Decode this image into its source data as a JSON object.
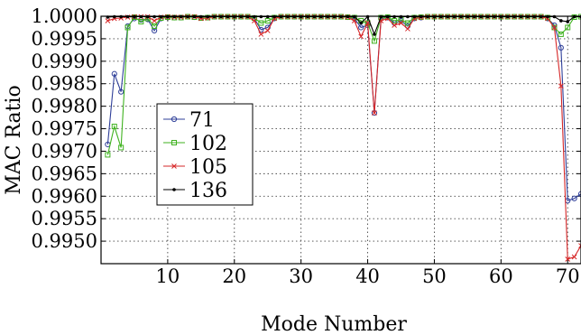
{
  "chart_data": {
    "type": "line",
    "title": "",
    "xlabel": "Mode Number",
    "ylabel": "MAC Ratio",
    "xlim": [
      0,
      72
    ],
    "ylim": [
      0.9945,
      1.0
    ],
    "xticks": [
      10,
      20,
      30,
      40,
      50,
      60,
      70
    ],
    "yticks": [
      "0.9950",
      "0.9955",
      "0.9960",
      "0.9965",
      "0.9970",
      "0.9975",
      "0.9980",
      "0.9985",
      "0.9990",
      "0.9995",
      "1.0000"
    ],
    "grid": true,
    "legend_position": "left",
    "series": [
      {
        "name": "71",
        "color": "#2f3f99",
        "marker": "circle",
        "points": [
          [
            1,
            0.99715
          ],
          [
            2,
            0.99872
          ],
          [
            3,
            0.99832
          ],
          [
            4,
            0.99978
          ],
          [
            5,
            0.99995
          ],
          [
            6,
            0.99992
          ],
          [
            7,
            0.99993
          ],
          [
            8,
            0.99968
          ],
          [
            9,
            0.99995
          ],
          [
            10,
            0.99998
          ],
          [
            11,
            0.99997
          ],
          [
            12,
            0.99997
          ],
          [
            13,
            0.99999
          ],
          [
            14,
            0.99998
          ],
          [
            15,
            0.99996
          ],
          [
            16,
            0.99997
          ],
          [
            17,
            0.99999
          ],
          [
            18,
            0.99999
          ],
          [
            19,
            0.99999
          ],
          [
            20,
            0.99999
          ],
          [
            21,
            0.99999
          ],
          [
            22,
            0.99999
          ],
          [
            23,
            0.99995
          ],
          [
            24,
            0.9997
          ],
          [
            25,
            0.99975
          ],
          [
            26,
            0.99995
          ],
          [
            27,
            0.99999
          ],
          [
            28,
            0.99999
          ],
          [
            29,
            0.99999
          ],
          [
            30,
            0.99999
          ],
          [
            31,
            0.99999
          ],
          [
            32,
            0.99999
          ],
          [
            33,
            0.99999
          ],
          [
            34,
            0.99999
          ],
          [
            35,
            0.99999
          ],
          [
            36,
            0.99999
          ],
          [
            37,
            0.99998
          ],
          [
            38,
            0.99995
          ],
          [
            39,
            0.99975
          ],
          [
            40,
            0.9998
          ],
          [
            41,
            0.99785
          ],
          [
            42,
            0.99995
          ],
          [
            43,
            0.99997
          ],
          [
            44,
            0.99985
          ],
          [
            45,
            0.9999
          ],
          [
            46,
            0.99978
          ],
          [
            47,
            0.99995
          ],
          [
            48,
            0.99997
          ],
          [
            49,
            0.99999
          ],
          [
            50,
            0.99999
          ],
          [
            51,
            0.99999
          ],
          [
            52,
            0.99999
          ],
          [
            53,
            0.99999
          ],
          [
            54,
            0.99999
          ],
          [
            55,
            0.99999
          ],
          [
            56,
            0.99999
          ],
          [
            57,
            0.99999
          ],
          [
            58,
            0.99999
          ],
          [
            59,
            0.99999
          ],
          [
            60,
            0.99999
          ],
          [
            61,
            0.99999
          ],
          [
            62,
            0.99999
          ],
          [
            63,
            0.99999
          ],
          [
            64,
            0.99999
          ],
          [
            65,
            0.99999
          ],
          [
            66,
            0.99999
          ],
          [
            67,
            0.99995
          ],
          [
            68,
            0.9998
          ],
          [
            69,
            0.9993
          ],
          [
            70,
            0.9959
          ],
          [
            71,
            0.99595
          ],
          [
            72,
            0.99605
          ]
        ]
      },
      {
        "name": "102",
        "color": "#3fb21f",
        "marker": "square",
        "points": [
          [
            1,
            0.99692
          ],
          [
            2,
            0.99755
          ],
          [
            3,
            0.99708
          ],
          [
            4,
            0.99975
          ],
          [
            5,
            0.99998
          ],
          [
            6,
            0.99988
          ],
          [
            7,
            0.99995
          ],
          [
            8,
            0.99978
          ],
          [
            9,
            0.99996
          ],
          [
            10,
            0.99998
          ],
          [
            11,
            0.99997
          ],
          [
            12,
            0.99997
          ],
          [
            13,
            0.99999
          ],
          [
            14,
            0.99998
          ],
          [
            15,
            0.99996
          ],
          [
            16,
            0.99997
          ],
          [
            17,
            0.99999
          ],
          [
            18,
            0.99999
          ],
          [
            19,
            0.99999
          ],
          [
            20,
            0.99999
          ],
          [
            21,
            0.99999
          ],
          [
            22,
            0.99999
          ],
          [
            23,
            0.99996
          ],
          [
            24,
            0.99985
          ],
          [
            25,
            0.9999
          ],
          [
            26,
            0.99997
          ],
          [
            27,
            0.99999
          ],
          [
            28,
            0.99999
          ],
          [
            29,
            0.99999
          ],
          [
            30,
            0.99999
          ],
          [
            31,
            0.99999
          ],
          [
            32,
            0.99999
          ],
          [
            33,
            0.99999
          ],
          [
            34,
            0.99999
          ],
          [
            35,
            0.99999
          ],
          [
            36,
            0.99999
          ],
          [
            37,
            0.99998
          ],
          [
            38,
            0.99997
          ],
          [
            39,
            0.9999
          ],
          [
            40,
            0.99985
          ],
          [
            41,
            0.99945
          ],
          [
            42,
            0.99997
          ],
          [
            43,
            0.99998
          ],
          [
            44,
            0.9999
          ],
          [
            45,
            0.99992
          ],
          [
            46,
            0.99985
          ],
          [
            47,
            0.99997
          ],
          [
            48,
            0.99998
          ],
          [
            49,
            0.99999
          ],
          [
            50,
            0.99999
          ],
          [
            51,
            0.99999
          ],
          [
            52,
            0.99999
          ],
          [
            53,
            0.99999
          ],
          [
            54,
            0.99999
          ],
          [
            55,
            0.99999
          ],
          [
            56,
            0.99999
          ],
          [
            57,
            0.99999
          ],
          [
            58,
            0.99999
          ],
          [
            59,
            0.99999
          ],
          [
            60,
            0.99999
          ],
          [
            61,
            0.99999
          ],
          [
            62,
            0.99999
          ],
          [
            63,
            0.99999
          ],
          [
            64,
            0.99999
          ],
          [
            65,
            0.99999
          ],
          [
            66,
            0.99999
          ],
          [
            67,
            0.99997
          ],
          [
            68,
            0.99975
          ],
          [
            69,
            0.9996
          ],
          [
            70,
            0.99975
          ],
          [
            71,
            0.99998
          ],
          [
            72,
            0.99999
          ]
        ]
      },
      {
        "name": "105",
        "color": "#d62728",
        "marker": "cross",
        "points": [
          [
            1,
            0.9999
          ],
          [
            2,
            0.99995
          ],
          [
            3,
            0.99996
          ],
          [
            4,
            0.99998
          ],
          [
            5,
            0.99999
          ],
          [
            6,
            0.99999
          ],
          [
            7,
            0.99999
          ],
          [
            8,
            0.9999
          ],
          [
            9,
            0.99998
          ],
          [
            10,
            0.99999
          ],
          [
            11,
            0.99998
          ],
          [
            12,
            0.99998
          ],
          [
            13,
            0.99999
          ],
          [
            14,
            0.99999
          ],
          [
            15,
            0.99995
          ],
          [
            16,
            0.99996
          ],
          [
            17,
            0.99999
          ],
          [
            18,
            0.99999
          ],
          [
            19,
            0.99999
          ],
          [
            20,
            0.99999
          ],
          [
            21,
            0.99999
          ],
          [
            22,
            0.99999
          ],
          [
            23,
            0.9999
          ],
          [
            24,
            0.9996
          ],
          [
            25,
            0.99968
          ],
          [
            26,
            0.99995
          ],
          [
            27,
            0.99999
          ],
          [
            28,
            0.99999
          ],
          [
            29,
            0.99999
          ],
          [
            30,
            0.99999
          ],
          [
            31,
            0.99999
          ],
          [
            32,
            0.99999
          ],
          [
            33,
            0.99999
          ],
          [
            34,
            0.99999
          ],
          [
            35,
            0.99999
          ],
          [
            36,
            0.99999
          ],
          [
            37,
            0.99998
          ],
          [
            38,
            0.9999
          ],
          [
            39,
            0.99955
          ],
          [
            40,
            0.99985
          ],
          [
            41,
            0.99785
          ],
          [
            42,
            0.9999
          ],
          [
            43,
            0.99995
          ],
          [
            44,
            0.9998
          ],
          [
            45,
            0.99985
          ],
          [
            46,
            0.99972
          ],
          [
            47,
            0.99995
          ],
          [
            48,
            0.99997
          ],
          [
            49,
            0.99999
          ],
          [
            50,
            0.99999
          ],
          [
            51,
            0.99999
          ],
          [
            52,
            0.99999
          ],
          [
            53,
            0.99999
          ],
          [
            54,
            0.99999
          ],
          [
            55,
            0.99999
          ],
          [
            56,
            0.99999
          ],
          [
            57,
            0.99999
          ],
          [
            58,
            0.99999
          ],
          [
            59,
            0.99999
          ],
          [
            60,
            0.99999
          ],
          [
            61,
            0.99999
          ],
          [
            62,
            0.99999
          ],
          [
            63,
            0.99999
          ],
          [
            64,
            0.99999
          ],
          [
            65,
            0.99999
          ],
          [
            66,
            0.99999
          ],
          [
            67,
            0.99995
          ],
          [
            68,
            0.99975
          ],
          [
            69,
            0.99845
          ],
          [
            70,
            0.9946
          ],
          [
            71,
            0.99465
          ],
          [
            72,
            0.9949
          ]
        ]
      },
      {
        "name": "136",
        "color": "#000000",
        "marker": "dot",
        "points": [
          [
            1,
            0.99998
          ],
          [
            2,
            0.99999
          ],
          [
            3,
            0.99999
          ],
          [
            4,
            0.99999
          ],
          [
            5,
            0.99999
          ],
          [
            6,
            0.99999
          ],
          [
            7,
            0.99999
          ],
          [
            8,
            0.99999
          ],
          [
            9,
            0.99999
          ],
          [
            10,
            0.99999
          ],
          [
            11,
            0.99999
          ],
          [
            12,
            0.99999
          ],
          [
            13,
            0.99999
          ],
          [
            14,
            0.99999
          ],
          [
            15,
            0.99999
          ],
          [
            16,
            0.99999
          ],
          [
            17,
            0.99999
          ],
          [
            18,
            0.99999
          ],
          [
            19,
            0.99999
          ],
          [
            20,
            0.99999
          ],
          [
            21,
            0.99999
          ],
          [
            22,
            0.99999
          ],
          [
            23,
            0.99999
          ],
          [
            24,
            0.99999
          ],
          [
            25,
            0.99999
          ],
          [
            26,
            0.99999
          ],
          [
            27,
            0.99999
          ],
          [
            28,
            0.99999
          ],
          [
            29,
            0.99999
          ],
          [
            30,
            0.99999
          ],
          [
            31,
            0.99999
          ],
          [
            32,
            0.99999
          ],
          [
            33,
            0.99999
          ],
          [
            34,
            0.99999
          ],
          [
            35,
            0.99999
          ],
          [
            36,
            0.99999
          ],
          [
            37,
            0.99999
          ],
          [
            38,
            0.99999
          ],
          [
            39,
            0.99985
          ],
          [
            40,
            0.99999
          ],
          [
            41,
            0.9996
          ],
          [
            42,
            0.99999
          ],
          [
            43,
            0.99999
          ],
          [
            44,
            0.99999
          ],
          [
            45,
            0.99999
          ],
          [
            46,
            0.99999
          ],
          [
            47,
            0.99999
          ],
          [
            48,
            0.99999
          ],
          [
            49,
            0.99999
          ],
          [
            50,
            0.99999
          ],
          [
            51,
            0.99999
          ],
          [
            52,
            0.99999
          ],
          [
            53,
            0.99999
          ],
          [
            54,
            0.99999
          ],
          [
            55,
            0.99999
          ],
          [
            56,
            0.99999
          ],
          [
            57,
            0.99999
          ],
          [
            58,
            0.99999
          ],
          [
            59,
            0.99999
          ],
          [
            60,
            0.99999
          ],
          [
            61,
            0.99999
          ],
          [
            62,
            0.99999
          ],
          [
            63,
            0.99999
          ],
          [
            64,
            0.99999
          ],
          [
            65,
            0.99999
          ],
          [
            66,
            0.99999
          ],
          [
            67,
            0.99999
          ],
          [
            68,
            0.99999
          ],
          [
            69,
            0.9999
          ],
          [
            70,
            0.99988
          ],
          [
            71,
            0.99999
          ],
          [
            72,
            0.99999
          ]
        ]
      }
    ]
  }
}
